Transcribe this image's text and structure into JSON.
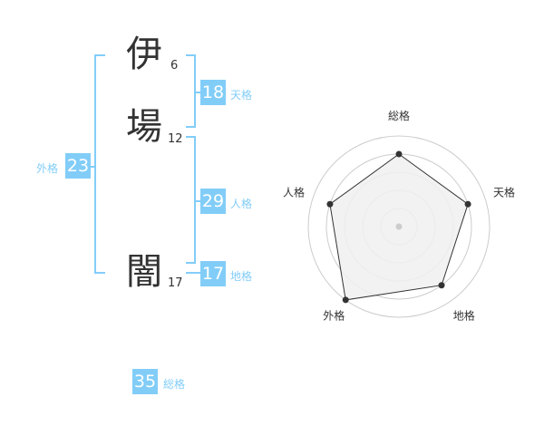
{
  "name": {
    "chars": [
      {
        "char": "伊",
        "strokes": "6"
      },
      {
        "char": "場",
        "strokes": "12"
      },
      {
        "char": "闇",
        "strokes": "17"
      }
    ]
  },
  "fortunes": {
    "tenkaku": {
      "label": "天格",
      "value": "18"
    },
    "jinkaku": {
      "label": "人格",
      "value": "29"
    },
    "chikaku": {
      "label": "地格",
      "value": "17"
    },
    "gaikaku": {
      "label": "外格",
      "value": "23"
    },
    "soukaku": {
      "label": "総格",
      "value": "35"
    }
  },
  "colors": {
    "accent": "#82cdf8",
    "fill": "#f0f0f0",
    "line": "#333333"
  },
  "chart_data": {
    "type": "radar",
    "axes": [
      "総格",
      "天格",
      "地格",
      "外格",
      "人格"
    ],
    "values": [
      4,
      4,
      4,
      5,
      4
    ],
    "range": [
      0,
      5
    ],
    "rings": 5
  }
}
